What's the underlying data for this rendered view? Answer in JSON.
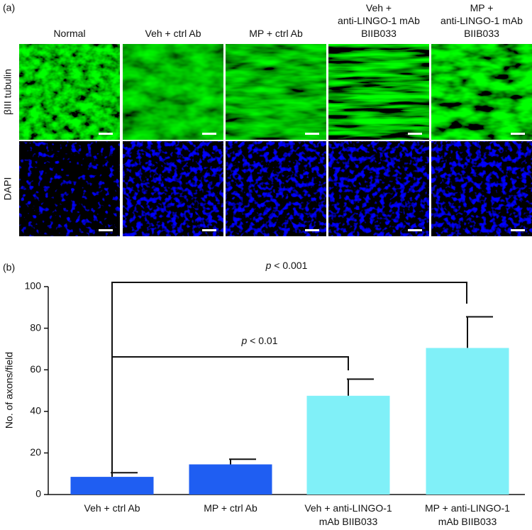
{
  "panel_a": {
    "label": "(a)",
    "columns": [
      [
        "Normal"
      ],
      [
        "Veh + ctrl Ab"
      ],
      [
        "MP + ctrl Ab"
      ],
      [
        "Veh +",
        "anti-LINGO-1 mAb",
        "BIIB033"
      ],
      [
        "MP +",
        "anti-LINGO-1 mAb",
        "BIIB033"
      ]
    ],
    "rows": [
      "βIII tubulin",
      "DAPI"
    ]
  },
  "chart_data": {
    "type": "bar",
    "panel_label": "(b)",
    "y_label": "No. of axons/field",
    "categories": [
      [
        "Veh + ctrl Ab"
      ],
      [
        "MP + ctrl Ab"
      ],
      [
        "Veh + anti-LINGO-1",
        "mAb BIIB033"
      ],
      [
        "MP + anti-LINGO-1",
        "mAb BIIB033"
      ]
    ],
    "values": [
      8.5,
      14.5,
      47.5,
      70.5
    ],
    "errors": [
      2,
      2.5,
      8,
      15
    ],
    "colors": [
      "#1f5ef2",
      "#1f5ef2",
      "#80f0f8",
      "#80f0f8"
    ],
    "ylim": [
      0,
      100
    ],
    "yticks": [
      0,
      20,
      40,
      60,
      80,
      100
    ],
    "annotations": [
      {
        "italic": "p",
        "text": " < 0.001"
      },
      {
        "italic": "p",
        "text": " < 0.01"
      }
    ]
  }
}
